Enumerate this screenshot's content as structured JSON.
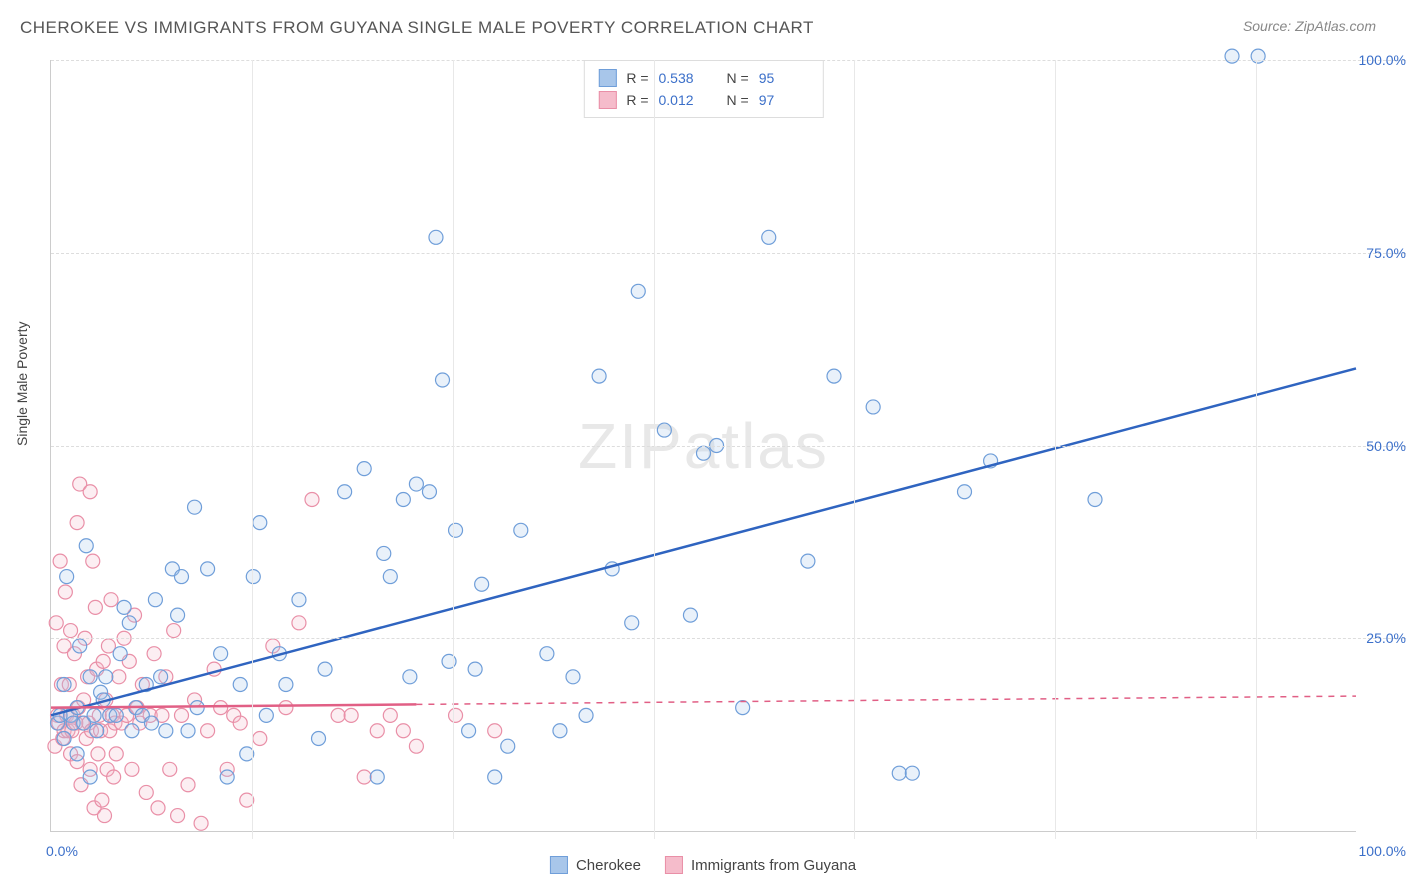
{
  "title": "CHEROKEE VS IMMIGRANTS FROM GUYANA SINGLE MALE POVERTY CORRELATION CHART",
  "source": "Source: ZipAtlas.com",
  "watermark": "ZIPatlas",
  "yaxis_title": "Single Male Poverty",
  "chart": {
    "type": "scatter",
    "xlim": [
      0,
      100
    ],
    "ylim": [
      0,
      100
    ],
    "xtick_labels": {
      "start": "0.0%",
      "end": "100.0%"
    },
    "ytick_values": [
      25,
      50,
      75,
      100
    ],
    "ytick_labels": [
      "25.0%",
      "50.0%",
      "75.0%",
      "100.0%"
    ],
    "vtick_values": [
      15.4,
      30.8,
      46.2,
      61.5,
      76.9,
      92.3
    ],
    "background_color": "#ffffff",
    "grid_color": "#dddddd",
    "axis_color": "#cccccc",
    "tick_label_color": "#3b6fc9",
    "marker_radius": 7,
    "marker_stroke_width": 1.2,
    "marker_fill_opacity": 0.25,
    "trend_line_width": 2.5
  },
  "series": [
    {
      "name": "Cherokee",
      "color_stroke": "#6f9ed9",
      "color_fill": "#a8c6ea",
      "line_color": "#2f64c0",
      "trend": {
        "x1": 0,
        "y1": 15,
        "x2": 100,
        "y2": 60,
        "dash": false
      },
      "R": "0.538",
      "N": "95",
      "points": [
        [
          0.5,
          14
        ],
        [
          0.7,
          15
        ],
        [
          1,
          12
        ],
        [
          1,
          19
        ],
        [
          1.2,
          33
        ],
        [
          1.5,
          15
        ],
        [
          1.7,
          14
        ],
        [
          2,
          16
        ],
        [
          2,
          10
        ],
        [
          2.2,
          24
        ],
        [
          2.5,
          14
        ],
        [
          2.7,
          37
        ],
        [
          3,
          20
        ],
        [
          3,
          7
        ],
        [
          3.3,
          15
        ],
        [
          3.5,
          13
        ],
        [
          3.8,
          18
        ],
        [
          4,
          17
        ],
        [
          4.2,
          20
        ],
        [
          4.5,
          15
        ],
        [
          5,
          15
        ],
        [
          5.3,
          23
        ],
        [
          5.6,
          29
        ],
        [
          6,
          27
        ],
        [
          6.2,
          13
        ],
        [
          6.5,
          16
        ],
        [
          7,
          15
        ],
        [
          7.3,
          19
        ],
        [
          7.7,
          14
        ],
        [
          8,
          30
        ],
        [
          8.4,
          20
        ],
        [
          8.8,
          13
        ],
        [
          9.3,
          34
        ],
        [
          9.7,
          28
        ],
        [
          10,
          33
        ],
        [
          10.5,
          13
        ],
        [
          11,
          42
        ],
        [
          11.2,
          16
        ],
        [
          12,
          34
        ],
        [
          13,
          23
        ],
        [
          13.5,
          7
        ],
        [
          14.5,
          19
        ],
        [
          15,
          10
        ],
        [
          15.5,
          33
        ],
        [
          16,
          40
        ],
        [
          16.5,
          15
        ],
        [
          17.5,
          23
        ],
        [
          18,
          19
        ],
        [
          19,
          30
        ],
        [
          20.5,
          12
        ],
        [
          21,
          21
        ],
        [
          22.5,
          44
        ],
        [
          24,
          47
        ],
        [
          25,
          7
        ],
        [
          25.5,
          36
        ],
        [
          26,
          33
        ],
        [
          27,
          43
        ],
        [
          27.5,
          20
        ],
        [
          28,
          45
        ],
        [
          29,
          44
        ],
        [
          29.5,
          77
        ],
        [
          30,
          58.5
        ],
        [
          30.5,
          22
        ],
        [
          31,
          39
        ],
        [
          32,
          13
        ],
        [
          32.5,
          21
        ],
        [
          33,
          32
        ],
        [
          34,
          7
        ],
        [
          35,
          11
        ],
        [
          36,
          39
        ],
        [
          38,
          23
        ],
        [
          39,
          13
        ],
        [
          40,
          20
        ],
        [
          41,
          15
        ],
        [
          42,
          59
        ],
        [
          43,
          34
        ],
        [
          44.5,
          27
        ],
        [
          45,
          70
        ],
        [
          47,
          52
        ],
        [
          49,
          28
        ],
        [
          50,
          49
        ],
        [
          51,
          50
        ],
        [
          53,
          16
        ],
        [
          55,
          77
        ],
        [
          58,
          35
        ],
        [
          60,
          59
        ],
        [
          63,
          55
        ],
        [
          65,
          7.5
        ],
        [
          66,
          7.5
        ],
        [
          70,
          44
        ],
        [
          72,
          48
        ],
        [
          80,
          43
        ],
        [
          90.5,
          100.5
        ],
        [
          92.5,
          100.5
        ]
      ]
    },
    {
      "name": "Immigrants from Guyana",
      "color_stroke": "#e98fa7",
      "color_fill": "#f5bccb",
      "line_color": "#e15f85",
      "trend": {
        "x1": 0,
        "y1": 16,
        "x2": 100,
        "y2": 17.5,
        "dash": true,
        "solid_until": 28
      },
      "R": "0.012",
      "N": "97",
      "points": [
        [
          0.3,
          11
        ],
        [
          0.4,
          27
        ],
        [
          0.5,
          15
        ],
        [
          0.6,
          14
        ],
        [
          0.7,
          35
        ],
        [
          0.8,
          19
        ],
        [
          0.9,
          12
        ],
        [
          1,
          13
        ],
        [
          1,
          24
        ],
        [
          1.1,
          31
        ],
        [
          1.2,
          15
        ],
        [
          1.3,
          13
        ],
        [
          1.4,
          19
        ],
        [
          1.5,
          10
        ],
        [
          1.5,
          26
        ],
        [
          1.6,
          13
        ],
        [
          1.7,
          15
        ],
        [
          1.8,
          23
        ],
        [
          1.9,
          14
        ],
        [
          2,
          40
        ],
        [
          2,
          9
        ],
        [
          2.1,
          16
        ],
        [
          2.2,
          45
        ],
        [
          2.3,
          6
        ],
        [
          2.4,
          14
        ],
        [
          2.5,
          17
        ],
        [
          2.6,
          25
        ],
        [
          2.7,
          12
        ],
        [
          2.8,
          20
        ],
        [
          2.9,
          14
        ],
        [
          3,
          8
        ],
        [
          3,
          44
        ],
        [
          3.1,
          13
        ],
        [
          3.2,
          35
        ],
        [
          3.3,
          3
        ],
        [
          3.4,
          29
        ],
        [
          3.5,
          21
        ],
        [
          3.6,
          10
        ],
        [
          3.7,
          15
        ],
        [
          3.8,
          13
        ],
        [
          3.9,
          4
        ],
        [
          4,
          22
        ],
        [
          4.1,
          2
        ],
        [
          4.2,
          17
        ],
        [
          4.3,
          8
        ],
        [
          4.4,
          24
        ],
        [
          4.5,
          13
        ],
        [
          4.6,
          30
        ],
        [
          4.7,
          15
        ],
        [
          4.8,
          7
        ],
        [
          4.9,
          14
        ],
        [
          5,
          10
        ],
        [
          5.2,
          20
        ],
        [
          5.4,
          14
        ],
        [
          5.6,
          25
        ],
        [
          5.8,
          15
        ],
        [
          6,
          22
        ],
        [
          6.2,
          8
        ],
        [
          6.4,
          28
        ],
        [
          6.6,
          16
        ],
        [
          6.8,
          14
        ],
        [
          7,
          19
        ],
        [
          7.3,
          5
        ],
        [
          7.6,
          15
        ],
        [
          7.9,
          23
        ],
        [
          8.2,
          3
        ],
        [
          8.5,
          15
        ],
        [
          8.8,
          20
        ],
        [
          9.1,
          8
        ],
        [
          9.4,
          26
        ],
        [
          9.7,
          2
        ],
        [
          10,
          15
        ],
        [
          10.5,
          6
        ],
        [
          11,
          17
        ],
        [
          11.5,
          1
        ],
        [
          12,
          13
        ],
        [
          12.5,
          21
        ],
        [
          13,
          16
        ],
        [
          13.5,
          8
        ],
        [
          14,
          15
        ],
        [
          14.5,
          14
        ],
        [
          15,
          4
        ],
        [
          16,
          12
        ],
        [
          17,
          24
        ],
        [
          18,
          16
        ],
        [
          19,
          27
        ],
        [
          20,
          43
        ],
        [
          22,
          15
        ],
        [
          23,
          15
        ],
        [
          24,
          7
        ],
        [
          25,
          13
        ],
        [
          26,
          15
        ],
        [
          27,
          13
        ],
        [
          28,
          11
        ],
        [
          31,
          15
        ],
        [
          34,
          13
        ]
      ]
    }
  ],
  "legend_bottom": [
    {
      "label": "Cherokee",
      "stroke": "#6f9ed9",
      "fill": "#a8c6ea"
    },
    {
      "label": "Immigrants from Guyana",
      "stroke": "#e98fa7",
      "fill": "#f5bccb"
    }
  ]
}
